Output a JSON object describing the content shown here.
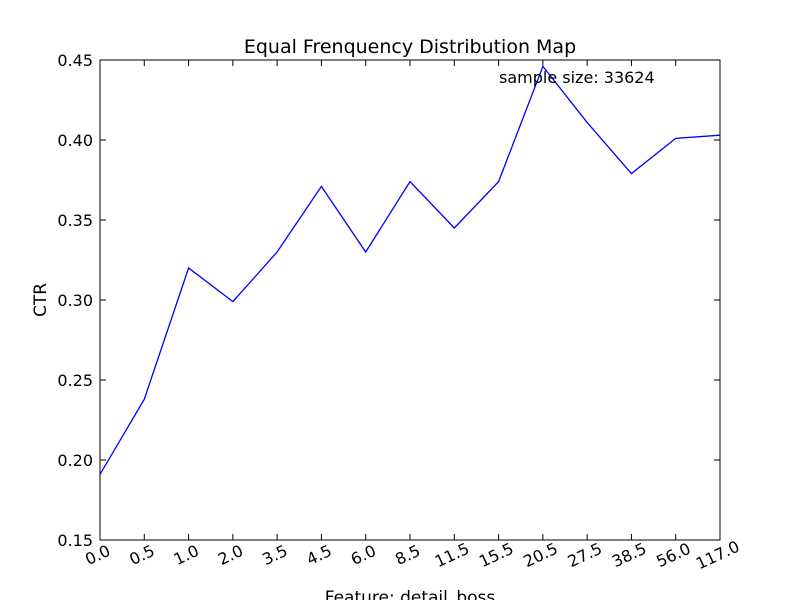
{
  "chart_data": {
    "type": "line",
    "title": "Equal Frenquency Distribution Map",
    "xlabel": "Feature: detail_boss",
    "ylabel": "CTR",
    "annotation": "sample size: 33624",
    "categories": [
      "0.0",
      "0.5",
      "1.0",
      "2.0",
      "3.5",
      "4.5",
      "6.0",
      "8.5",
      "11.5",
      "15.5",
      "20.5",
      "27.5",
      "38.5",
      "56.0",
      "117.0"
    ],
    "values": [
      0.191,
      0.238,
      0.32,
      0.299,
      0.33,
      0.371,
      0.33,
      0.374,
      0.345,
      0.374,
      0.446,
      0.411,
      0.379,
      0.401,
      0.403
    ],
    "ylim": [
      0.15,
      0.45
    ],
    "yticks": [
      0.15,
      0.2,
      0.25,
      0.3,
      0.35,
      0.4,
      0.45
    ],
    "ytick_labels": [
      "0.15",
      "0.20",
      "0.25",
      "0.30",
      "0.35",
      "0.40",
      "0.45"
    ],
    "line_color": "#0000ff",
    "grid": false
  }
}
